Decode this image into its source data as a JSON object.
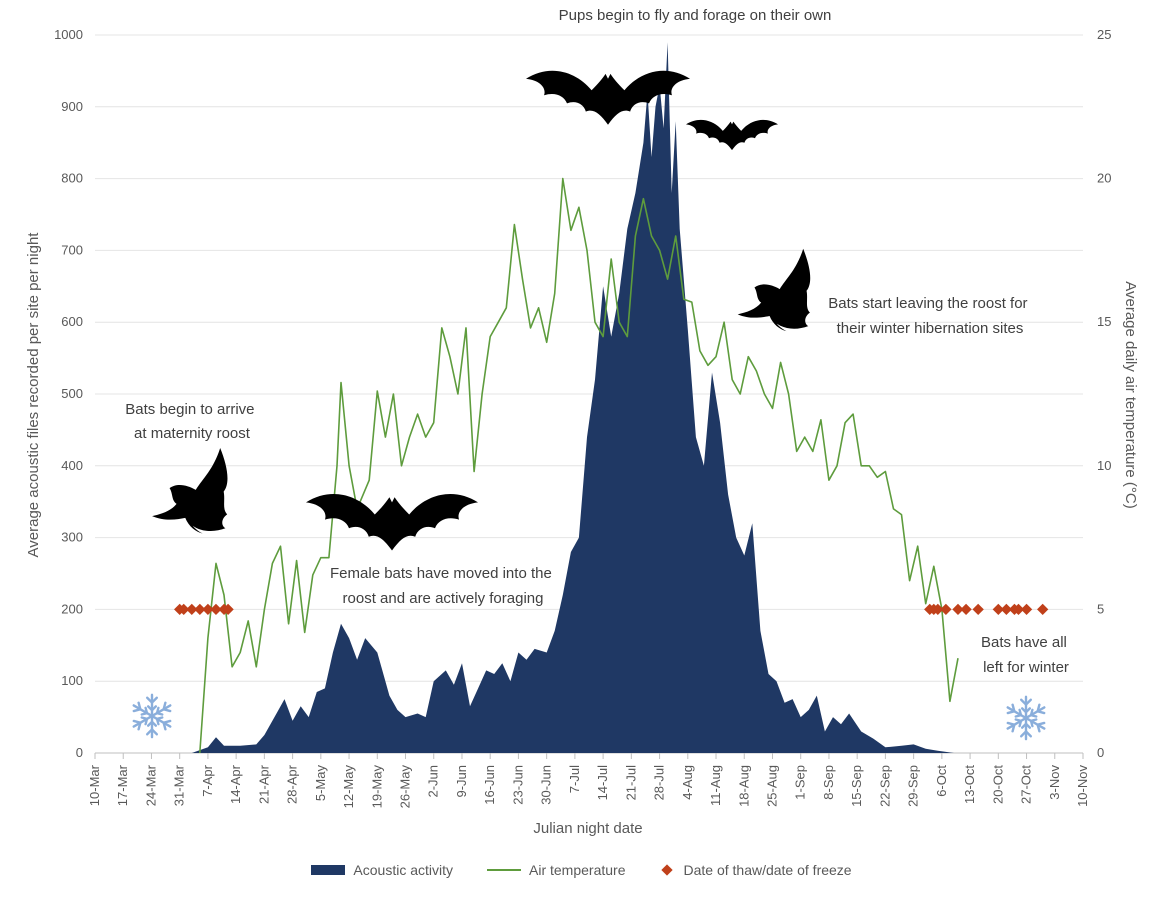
{
  "chart_data": {
    "type": "area",
    "xlabel": "Julian night date",
    "ylabel_left": "Average acoustic files recorded per site per night",
    "ylabel_right": "Average daily air temperature (°C)",
    "x_start": "10-Mar",
    "x_end": "10-Nov",
    "x_ticks": [
      "10-Mar",
      "17-Mar",
      "24-Mar",
      "31-Mar",
      "7-Apr",
      "14-Apr",
      "21-Apr",
      "28-Apr",
      "5-May",
      "12-May",
      "19-May",
      "26-May",
      "2-Jun",
      "9-Jun",
      "16-Jun",
      "23-Jun",
      "30-Jun",
      "7-Jul",
      "14-Jul",
      "21-Jul",
      "28-Jul",
      "4-Aug",
      "11-Aug",
      "18-Aug",
      "25-Aug",
      "1-Sep",
      "8-Sep",
      "15-Sep",
      "22-Sep",
      "29-Sep",
      "6-Oct",
      "13-Oct",
      "20-Oct",
      "27-Oct",
      "3-Nov",
      "10-Nov"
    ],
    "y_left_range": [
      0,
      1000
    ],
    "y_left_ticks": [
      0,
      100,
      200,
      300,
      400,
      500,
      600,
      700,
      800,
      900,
      1000
    ],
    "y_right_range": [
      0,
      25
    ],
    "y_right_ticks": [
      0,
      5,
      10,
      15,
      20,
      25
    ],
    "grid": "horizontal",
    "legend_position": "bottom",
    "series": [
      {
        "name": "Acoustic activity",
        "type": "area",
        "axis": "left",
        "color": "#1f3864",
        "points": [
          [
            "3-Apr",
            0
          ],
          [
            "7-Apr",
            8
          ],
          [
            "9-Apr",
            22
          ],
          [
            "11-Apr",
            10
          ],
          [
            "15-Apr",
            10
          ],
          [
            "19-Apr",
            12
          ],
          [
            "21-Apr",
            25
          ],
          [
            "24-Apr",
            55
          ],
          [
            "26-Apr",
            75
          ],
          [
            "28-Apr",
            45
          ],
          [
            "30-Apr",
            65
          ],
          [
            "2-May",
            50
          ],
          [
            "4-May",
            85
          ],
          [
            "6-May",
            90
          ],
          [
            "8-May",
            140
          ],
          [
            "10-May",
            180
          ],
          [
            "12-May",
            160
          ],
          [
            "14-May",
            130
          ],
          [
            "16-May",
            160
          ],
          [
            "19-May",
            140
          ],
          [
            "22-May",
            80
          ],
          [
            "24-May",
            60
          ],
          [
            "26-May",
            50
          ],
          [
            "29-May",
            55
          ],
          [
            "31-May",
            50
          ],
          [
            "2-Jun",
            100
          ],
          [
            "5-Jun",
            115
          ],
          [
            "7-Jun",
            95
          ],
          [
            "9-Jun",
            125
          ],
          [
            "11-Jun",
            65
          ],
          [
            "13-Jun",
            90
          ],
          [
            "15-Jun",
            115
          ],
          [
            "17-Jun",
            110
          ],
          [
            "19-Jun",
            125
          ],
          [
            "21-Jun",
            100
          ],
          [
            "23-Jun",
            140
          ],
          [
            "25-Jun",
            130
          ],
          [
            "27-Jun",
            145
          ],
          [
            "30-Jun",
            140
          ],
          [
            "2-Jul",
            170
          ],
          [
            "4-Jul",
            220
          ],
          [
            "6-Jul",
            280
          ],
          [
            "8-Jul",
            300
          ],
          [
            "10-Jul",
            440
          ],
          [
            "12-Jul",
            520
          ],
          [
            "14-Jul",
            650
          ],
          [
            "16-Jul",
            580
          ],
          [
            "18-Jul",
            640
          ],
          [
            "20-Jul",
            730
          ],
          [
            "22-Jul",
            780
          ],
          [
            "24-Jul",
            850
          ],
          [
            "25-Jul",
            920
          ],
          [
            "26-Jul",
            830
          ],
          [
            "27-Jul",
            900
          ],
          [
            "28-Jul",
            930
          ],
          [
            "29-Jul",
            870
          ],
          [
            "30-Jul",
            990
          ],
          [
            "31-Jul",
            780
          ],
          [
            "1-Aug",
            880
          ],
          [
            "2-Aug",
            730
          ],
          [
            "4-Aug",
            590
          ],
          [
            "6-Aug",
            440
          ],
          [
            "8-Aug",
            400
          ],
          [
            "10-Aug",
            530
          ],
          [
            "12-Aug",
            460
          ],
          [
            "14-Aug",
            360
          ],
          [
            "16-Aug",
            300
          ],
          [
            "18-Aug",
            275
          ],
          [
            "20-Aug",
            320
          ],
          [
            "22-Aug",
            170
          ],
          [
            "24-Aug",
            110
          ],
          [
            "26-Aug",
            100
          ],
          [
            "28-Aug",
            70
          ],
          [
            "30-Aug",
            75
          ],
          [
            "1-Sep",
            50
          ],
          [
            "3-Sep",
            60
          ],
          [
            "5-Sep",
            80
          ],
          [
            "7-Sep",
            30
          ],
          [
            "9-Sep",
            50
          ],
          [
            "11-Sep",
            40
          ],
          [
            "13-Sep",
            55
          ],
          [
            "16-Sep",
            30
          ],
          [
            "19-Sep",
            20
          ],
          [
            "22-Sep",
            8
          ],
          [
            "26-Sep",
            10
          ],
          [
            "29-Sep",
            12
          ],
          [
            "2-Oct",
            6
          ],
          [
            "5-Oct",
            3
          ],
          [
            "9-Oct",
            0
          ]
        ]
      },
      {
        "name": "Air temperature",
        "type": "line",
        "axis": "right",
        "color": "#5e9c3d",
        "points": [
          [
            "5-Apr",
            0
          ],
          [
            "7-Apr",
            4
          ],
          [
            "9-Apr",
            6.6
          ],
          [
            "11-Apr",
            5.5
          ],
          [
            "13-Apr",
            3
          ],
          [
            "15-Apr",
            3.5
          ],
          [
            "17-Apr",
            4.6
          ],
          [
            "19-Apr",
            3
          ],
          [
            "21-Apr",
            5
          ],
          [
            "23-Apr",
            6.6
          ],
          [
            "25-Apr",
            7.2
          ],
          [
            "27-Apr",
            4.5
          ],
          [
            "29-Apr",
            6.7
          ],
          [
            "1-May",
            4.2
          ],
          [
            "3-May",
            6.2
          ],
          [
            "5-May",
            6.8
          ],
          [
            "7-May",
            6.8
          ],
          [
            "9-May",
            10
          ],
          [
            "10-May",
            12.9
          ],
          [
            "12-May",
            10
          ],
          [
            "14-May",
            8.5
          ],
          [
            "17-May",
            9.5
          ],
          [
            "19-May",
            12.6
          ],
          [
            "21-May",
            11
          ],
          [
            "23-May",
            12.5
          ],
          [
            "25-May",
            10
          ],
          [
            "27-May",
            11
          ],
          [
            "29-May",
            11.8
          ],
          [
            "31-May",
            11
          ],
          [
            "2-Jun",
            11.5
          ],
          [
            "4-Jun",
            14.8
          ],
          [
            "6-Jun",
            13.8
          ],
          [
            "8-Jun",
            12.5
          ],
          [
            "10-Jun",
            14.8
          ],
          [
            "12-Jun",
            9.8
          ],
          [
            "14-Jun",
            12.5
          ],
          [
            "16-Jun",
            14.5
          ],
          [
            "18-Jun",
            15
          ],
          [
            "20-Jun",
            15.5
          ],
          [
            "22-Jun",
            18.4
          ],
          [
            "24-Jun",
            16.5
          ],
          [
            "26-Jun",
            14.8
          ],
          [
            "28-Jun",
            15.5
          ],
          [
            "30-Jun",
            14.3
          ],
          [
            "2-Jul",
            16
          ],
          [
            "4-Jul",
            20
          ],
          [
            "6-Jul",
            18.2
          ],
          [
            "8-Jul",
            19
          ],
          [
            "10-Jul",
            17.5
          ],
          [
            "12-Jul",
            15
          ],
          [
            "14-Jul",
            14.5
          ],
          [
            "16-Jul",
            17.2
          ],
          [
            "18-Jul",
            15
          ],
          [
            "20-Jul",
            14.5
          ],
          [
            "22-Jul",
            18
          ],
          [
            "24-Jul",
            19.3
          ],
          [
            "26-Jul",
            18
          ],
          [
            "28-Jul",
            17.5
          ],
          [
            "30-Jul",
            16.5
          ],
          [
            "1-Aug",
            18
          ],
          [
            "3-Aug",
            15.8
          ],
          [
            "5-Aug",
            15.7
          ],
          [
            "7-Aug",
            14
          ],
          [
            "9-Aug",
            13.5
          ],
          [
            "11-Aug",
            13.8
          ],
          [
            "13-Aug",
            15
          ],
          [
            "15-Aug",
            13
          ],
          [
            "17-Aug",
            12.5
          ],
          [
            "19-Aug",
            13.8
          ],
          [
            "21-Aug",
            13.3
          ],
          [
            "23-Aug",
            12.5
          ],
          [
            "25-Aug",
            12
          ],
          [
            "27-Aug",
            13.6
          ],
          [
            "29-Aug",
            12.5
          ],
          [
            "31-Aug",
            10.5
          ],
          [
            "2-Sep",
            11
          ],
          [
            "4-Sep",
            10.5
          ],
          [
            "6-Sep",
            11.6
          ],
          [
            "8-Sep",
            9.5
          ],
          [
            "10-Sep",
            10
          ],
          [
            "12-Sep",
            11.5
          ],
          [
            "14-Sep",
            11.8
          ],
          [
            "16-Sep",
            10
          ],
          [
            "18-Sep",
            10
          ],
          [
            "20-Sep",
            9.6
          ],
          [
            "22-Sep",
            9.8
          ],
          [
            "24-Sep",
            8.5
          ],
          [
            "26-Sep",
            8.3
          ],
          [
            "28-Sep",
            6
          ],
          [
            "30-Sep",
            7.2
          ],
          [
            "2-Oct",
            5.2
          ],
          [
            "4-Oct",
            6.5
          ],
          [
            "6-Oct",
            5
          ],
          [
            "8-Oct",
            1.8
          ],
          [
            "10-Oct",
            3.3
          ]
        ]
      },
      {
        "name": "Date of thaw/date of freeze",
        "type": "scatter",
        "axis": "right",
        "color": "#c0401a",
        "points": [
          [
            "31-Mar",
            5
          ],
          [
            "1-Apr",
            5
          ],
          [
            "3-Apr",
            5
          ],
          [
            "5-Apr",
            5
          ],
          [
            "7-Apr",
            5
          ],
          [
            "9-Apr",
            5
          ],
          [
            "11-Apr",
            5
          ],
          [
            "12-Apr",
            5
          ],
          [
            "3-Oct",
            5
          ],
          [
            "4-Oct",
            5
          ],
          [
            "5-Oct",
            5
          ],
          [
            "7-Oct",
            5
          ],
          [
            "10-Oct",
            5
          ],
          [
            "12-Oct",
            5
          ],
          [
            "15-Oct",
            5
          ],
          [
            "20-Oct",
            5
          ],
          [
            "22-Oct",
            5
          ],
          [
            "24-Oct",
            5
          ],
          [
            "25-Oct",
            5
          ],
          [
            "27-Oct",
            5
          ],
          [
            "31-Oct",
            5
          ]
        ]
      }
    ],
    "annotations": [
      {
        "lines": [
          "Pups begin to fly and forage on their own"
        ]
      },
      {
        "lines": [
          "Bats begin to arrive",
          "at maternity roost"
        ]
      },
      {
        "lines": [
          "Female bats have moved into the",
          "roost and are actively foraging"
        ]
      },
      {
        "lines": [
          "Bats start leaving the roost for",
          "their winter hibernation sites"
        ]
      },
      {
        "lines": [
          "Bats have all",
          "left for winter"
        ]
      }
    ],
    "icons": [
      "bat-silhouette-icon",
      "snowflake-icon"
    ]
  }
}
